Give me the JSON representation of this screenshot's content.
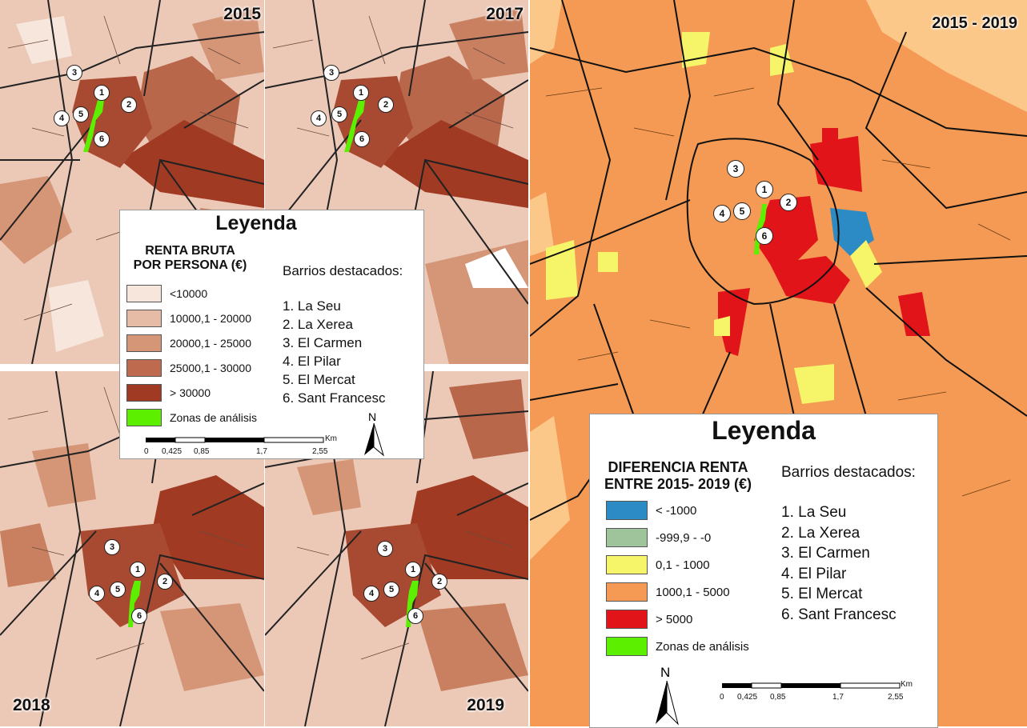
{
  "panels": {
    "p2015": {
      "year": "2015"
    },
    "p2017": {
      "year": "2017"
    },
    "p2018": {
      "year": "2018"
    },
    "p2019": {
      "year": "2019"
    },
    "diff": {
      "year": "2015 - 2019"
    }
  },
  "markers": [
    "1",
    "2",
    "3",
    "4",
    "5",
    "6"
  ],
  "legend_left": {
    "title": "Leyenda",
    "subtitle_line1": "RENTA BRUTA",
    "subtitle_line2": "POR PERSONA (€)",
    "classes": [
      {
        "label": "<10000",
        "color": "#f6e6dc"
      },
      {
        "label": "10000,1 - 20000",
        "color": "#e7bca7"
      },
      {
        "label": "20000,1 - 25000",
        "color": "#d59577"
      },
      {
        "label": "25000,1 - 30000",
        "color": "#bd6a4e"
      },
      {
        "label": "> 30000",
        "color": "#a03a23"
      },
      {
        "label": "Zonas de análisis",
        "color": "#5cf000"
      }
    ],
    "barrios_title": "Barrios destacados:",
    "barrios": [
      "1. La Seu",
      "2. La Xerea",
      "3. El Carmen",
      "4. El Pilar",
      "5. El Mercat",
      "6. Sant Francesc"
    ],
    "scale": {
      "unit": "Km",
      "ticks": [
        "0",
        "0,425",
        "0,85",
        "1,7",
        "2,55"
      ]
    },
    "north": "N"
  },
  "legend_right": {
    "title": "Leyenda",
    "subtitle_line1": "DIFERENCIA RENTA",
    "subtitle_line2": "ENTRE 2015- 2019 (€)",
    "classes": [
      {
        "label": "< -1000",
        "color": "#2c8bc4"
      },
      {
        "label": "-999,9 - -0",
        "color": "#9fc39a"
      },
      {
        "label": "0,1 - 1000",
        "color": "#f6f56a"
      },
      {
        "label": "1000,1 - 5000",
        "color": "#f49a54"
      },
      {
        "label": "> 5000",
        "color": "#e1141a"
      },
      {
        "label": "Zonas de análisis",
        "color": "#5cf000"
      }
    ],
    "barrios_title": "Barrios destacados:",
    "barrios": [
      "1. La Seu",
      "2. La Xerea",
      "3. El Carmen",
      "4. El Pilar",
      "5. El Mercat",
      "6. Sant Francesc"
    ],
    "scale": {
      "unit": "Km",
      "ticks": [
        "0",
        "0,425",
        "0,85",
        "1,7",
        "2,55"
      ]
    },
    "north": "N"
  }
}
